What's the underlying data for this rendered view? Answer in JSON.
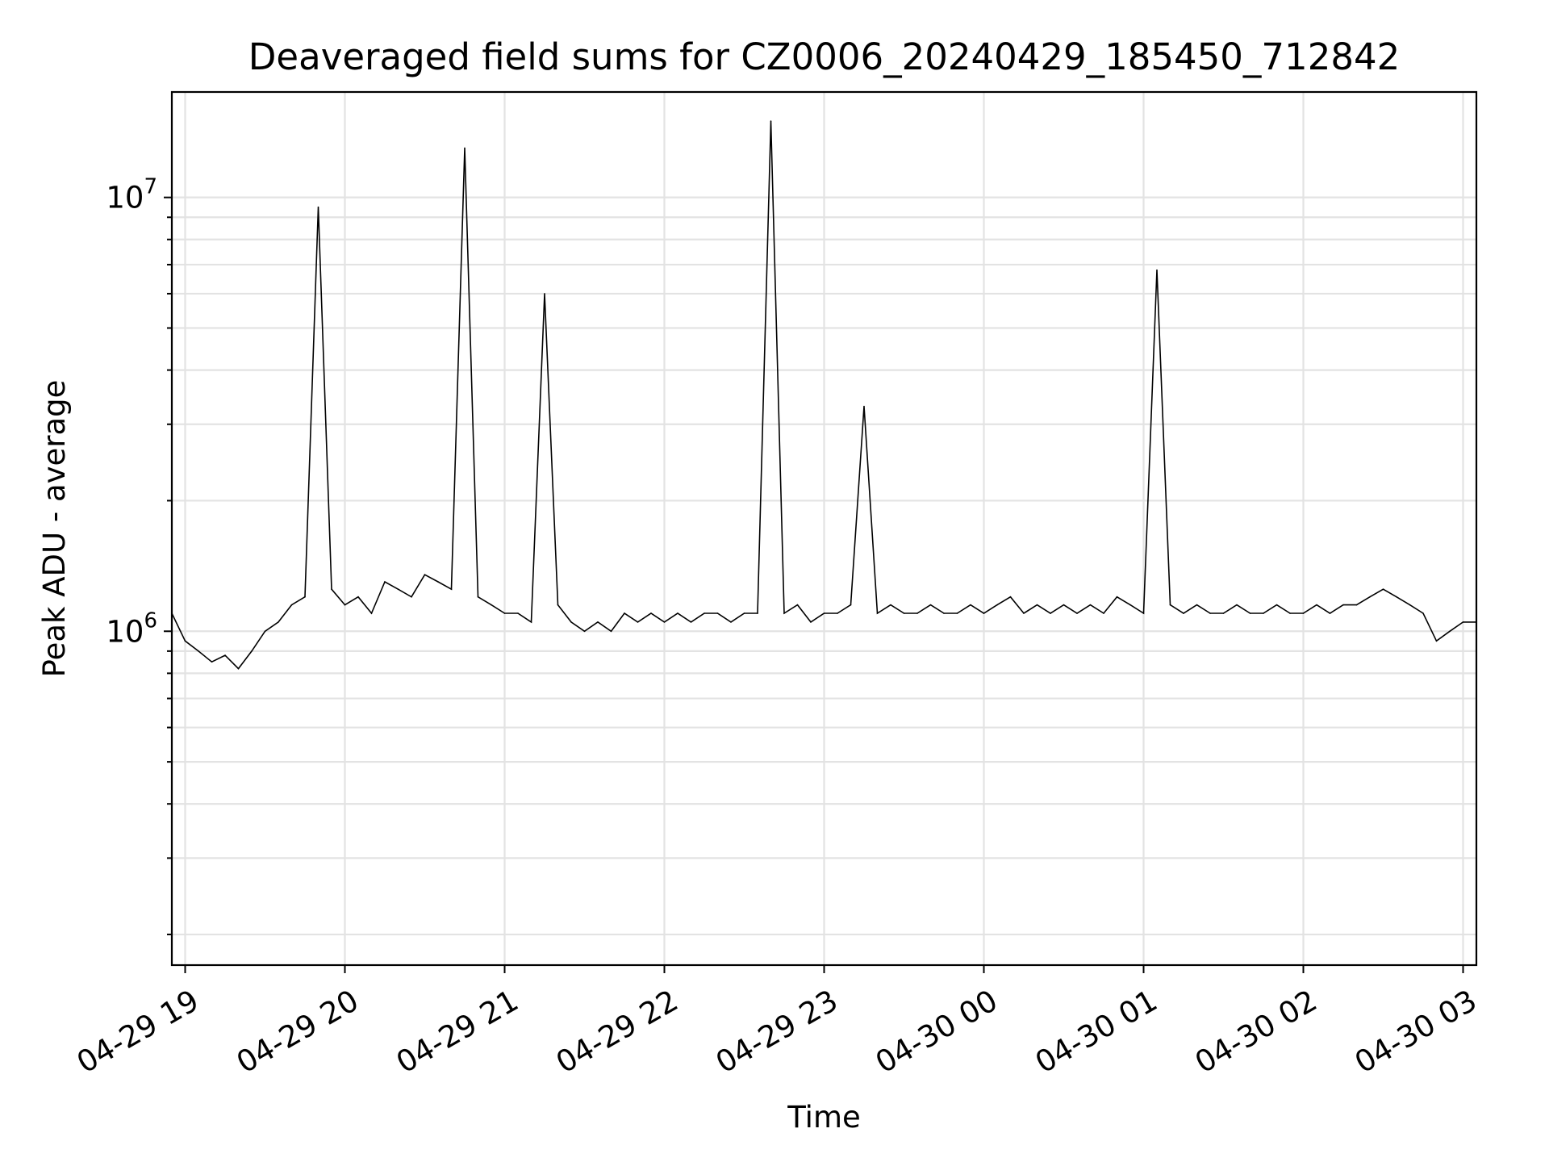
{
  "chart_data": {
    "type": "line",
    "title": "Deaveraged field sums for CZ0006_20240429_185450_712842",
    "xlabel": "Time",
    "ylabel": "Peak ADU - average",
    "yscale": "log",
    "ylim": [
      170000,
      17500000
    ],
    "xlim": [
      "2024-04-29 18:55",
      "2024-04-30 03:05"
    ],
    "grid": true,
    "line_color": "#000000",
    "x_ticks": [
      {
        "value": "2024-04-29 19:00",
        "label": "04-29 19"
      },
      {
        "value": "2024-04-29 20:00",
        "label": "04-29 20"
      },
      {
        "value": "2024-04-29 21:00",
        "label": "04-29 21"
      },
      {
        "value": "2024-04-29 22:00",
        "label": "04-29 22"
      },
      {
        "value": "2024-04-29 23:00",
        "label": "04-29 23"
      },
      {
        "value": "2024-04-30 00:00",
        "label": "04-30 00"
      },
      {
        "value": "2024-04-30 01:00",
        "label": "04-30 01"
      },
      {
        "value": "2024-04-30 02:00",
        "label": "04-30 02"
      },
      {
        "value": "2024-04-30 03:00",
        "label": "04-30 03"
      }
    ],
    "y_ticks": [
      {
        "value": 1000000,
        "base": "10",
        "exp": "6"
      },
      {
        "value": 10000000,
        "base": "10",
        "exp": "7"
      }
    ],
    "series": [
      {
        "x": [
          "2024-04-29 18:55",
          "2024-04-29 19:00",
          "2024-04-29 19:05",
          "2024-04-29 19:10",
          "2024-04-29 19:15",
          "2024-04-29 19:20",
          "2024-04-29 19:25",
          "2024-04-29 19:30",
          "2024-04-29 19:35",
          "2024-04-29 19:40",
          "2024-04-29 19:45",
          "2024-04-29 19:50",
          "2024-04-29 19:55",
          "2024-04-29 20:00",
          "2024-04-29 20:05",
          "2024-04-29 20:10",
          "2024-04-29 20:15",
          "2024-04-29 20:20",
          "2024-04-29 20:25",
          "2024-04-29 20:30",
          "2024-04-29 20:35",
          "2024-04-29 20:40",
          "2024-04-29 20:45",
          "2024-04-29 20:50",
          "2024-04-29 20:55",
          "2024-04-29 21:00",
          "2024-04-29 21:05",
          "2024-04-29 21:10",
          "2024-04-29 21:15",
          "2024-04-29 21:20",
          "2024-04-29 21:25",
          "2024-04-29 21:30",
          "2024-04-29 21:35",
          "2024-04-29 21:40",
          "2024-04-29 21:45",
          "2024-04-29 21:50",
          "2024-04-29 21:55",
          "2024-04-29 22:00",
          "2024-04-29 22:05",
          "2024-04-29 22:10",
          "2024-04-29 22:15",
          "2024-04-29 22:20",
          "2024-04-29 22:25",
          "2024-04-29 22:30",
          "2024-04-29 22:35",
          "2024-04-29 22:40",
          "2024-04-29 22:45",
          "2024-04-29 22:50",
          "2024-04-29 22:55",
          "2024-04-29 23:00",
          "2024-04-29 23:05",
          "2024-04-29 23:10",
          "2024-04-29 23:15",
          "2024-04-29 23:20",
          "2024-04-29 23:25",
          "2024-04-29 23:30",
          "2024-04-29 23:35",
          "2024-04-29 23:40",
          "2024-04-29 23:45",
          "2024-04-29 23:50",
          "2024-04-29 23:55",
          "2024-04-30 00:00",
          "2024-04-30 00:05",
          "2024-04-30 00:10",
          "2024-04-30 00:15",
          "2024-04-30 00:20",
          "2024-04-30 00:25",
          "2024-04-30 00:30",
          "2024-04-30 00:35",
          "2024-04-30 00:40",
          "2024-04-30 00:45",
          "2024-04-30 00:50",
          "2024-04-30 00:55",
          "2024-04-30 01:00",
          "2024-04-30 01:05",
          "2024-04-30 01:10",
          "2024-04-30 01:15",
          "2024-04-30 01:20",
          "2024-04-30 01:25",
          "2024-04-30 01:30",
          "2024-04-30 01:35",
          "2024-04-30 01:40",
          "2024-04-30 01:45",
          "2024-04-30 01:50",
          "2024-04-30 01:55",
          "2024-04-30 02:00",
          "2024-04-30 02:05",
          "2024-04-30 02:10",
          "2024-04-30 02:15",
          "2024-04-30 02:20",
          "2024-04-30 02:25",
          "2024-04-30 02:30",
          "2024-04-30 02:35",
          "2024-04-30 02:40",
          "2024-04-30 02:45",
          "2024-04-30 02:50",
          "2024-04-30 02:55",
          "2024-04-30 03:00",
          "2024-04-30 03:05"
        ],
        "y": [
          1100000,
          950000,
          900000,
          850000,
          880000,
          820000,
          900000,
          1000000,
          1050000,
          1150000,
          1200000,
          9500000,
          1250000,
          1150000,
          1200000,
          1100000,
          1300000,
          1250000,
          1200000,
          1350000,
          1300000,
          1250000,
          13000000,
          1200000,
          1150000,
          1100000,
          1100000,
          1050000,
          6000000,
          1150000,
          1050000,
          1000000,
          1050000,
          1000000,
          1100000,
          1050000,
          1100000,
          1050000,
          1100000,
          1050000,
          1100000,
          1100000,
          1050000,
          1100000,
          1100000,
          15000000,
          1100000,
          1150000,
          1050000,
          1100000,
          1100000,
          1150000,
          3300000,
          1100000,
          1150000,
          1100000,
          1100000,
          1150000,
          1100000,
          1100000,
          1150000,
          1100000,
          1150000,
          1200000,
          1100000,
          1150000,
          1100000,
          1150000,
          1100000,
          1150000,
          1100000,
          1200000,
          1150000,
          1100000,
          6800000,
          1150000,
          1100000,
          1150000,
          1100000,
          1100000,
          1150000,
          1100000,
          1100000,
          1150000,
          1100000,
          1100000,
          1150000,
          1100000,
          1150000,
          1150000,
          1200000,
          1250000,
          1200000,
          1150000,
          1100000,
          950000,
          1000000,
          1050000,
          1050000
        ]
      }
    ]
  }
}
